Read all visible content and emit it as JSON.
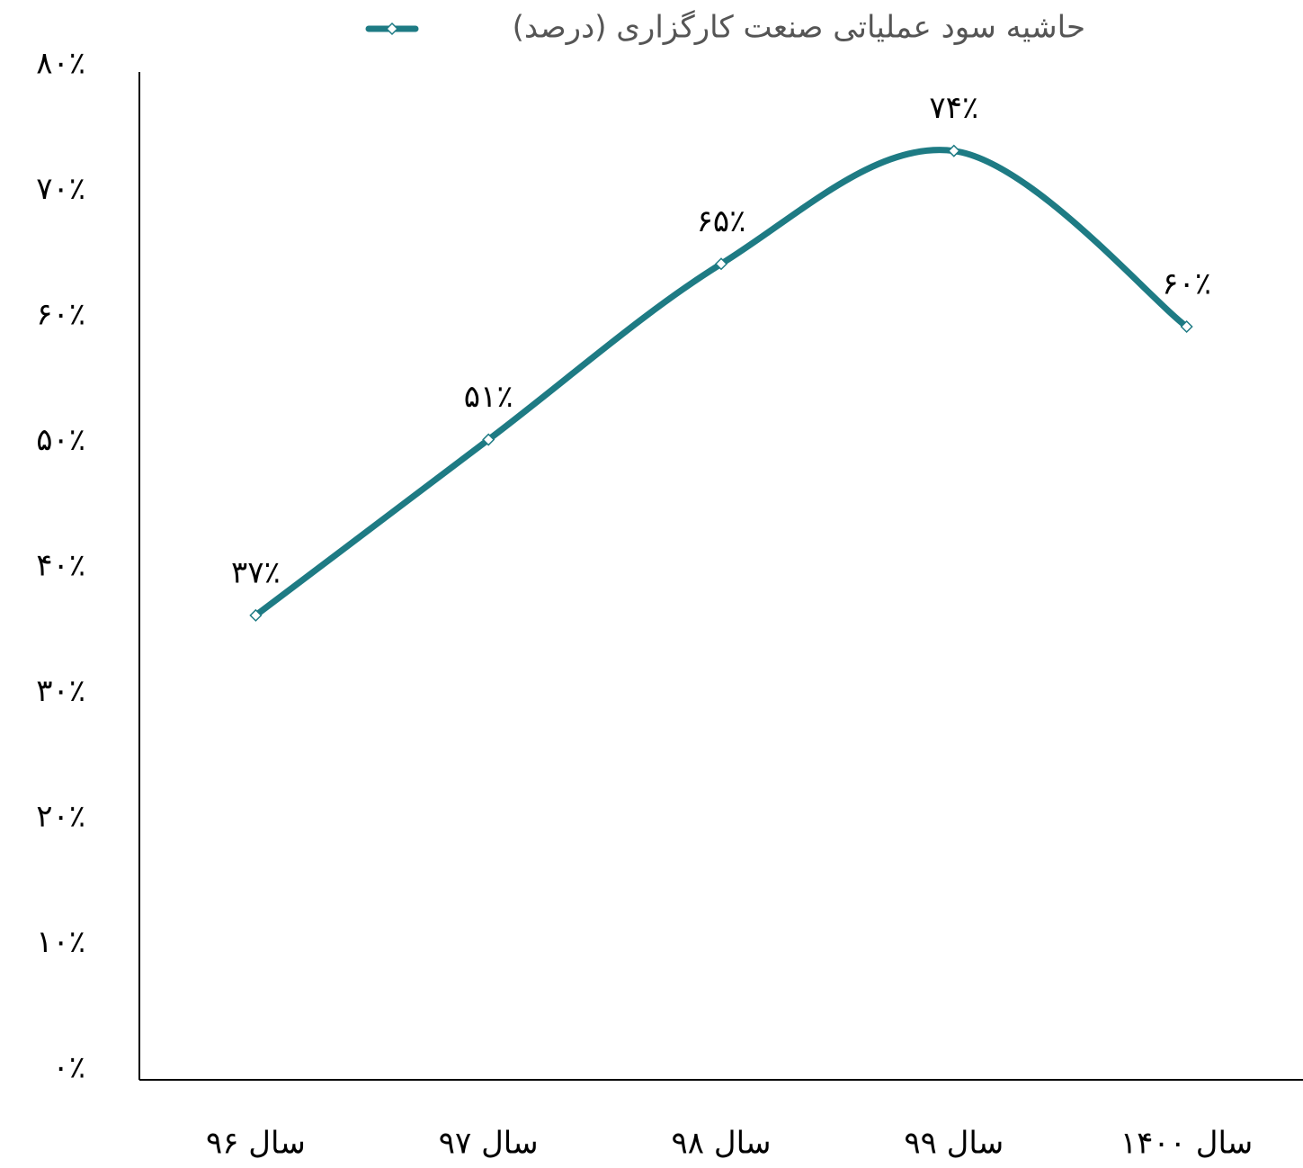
{
  "chart_data": {
    "type": "line",
    "categories": [
      "سال ۹۶",
      "سال ۹۷",
      "سال ۹۸",
      "سال ۹۹",
      "سال ۱۴۰۰"
    ],
    "series": [
      {
        "name": "حاشیه سود عملیاتی صنعت کارگزاری (درصد)",
        "color": "#1e7b84",
        "values": [
          37,
          51,
          65,
          74,
          60
        ],
        "value_labels": [
          "۳۷٪",
          "۵۱٪",
          "۶۵٪",
          "۷۴٪",
          "۶۰٪"
        ]
      }
    ],
    "ylim": [
      0,
      80
    ],
    "yticks": [
      {
        "value": 0,
        "label": "۰٪"
      },
      {
        "value": 10,
        "label": "۱۰٪"
      },
      {
        "value": 20,
        "label": "۲۰٪"
      },
      {
        "value": 30,
        "label": "۳۰٪"
      },
      {
        "value": 40,
        "label": "۴۰٪"
      },
      {
        "value": 50,
        "label": "۵۰٪"
      },
      {
        "value": 60,
        "label": "۶۰٪"
      },
      {
        "value": 70,
        "label": "۷۰٪"
      },
      {
        "value": 80,
        "label": "۸۰٪"
      }
    ],
    "grid": false,
    "legend": "top",
    "smooth": true
  }
}
